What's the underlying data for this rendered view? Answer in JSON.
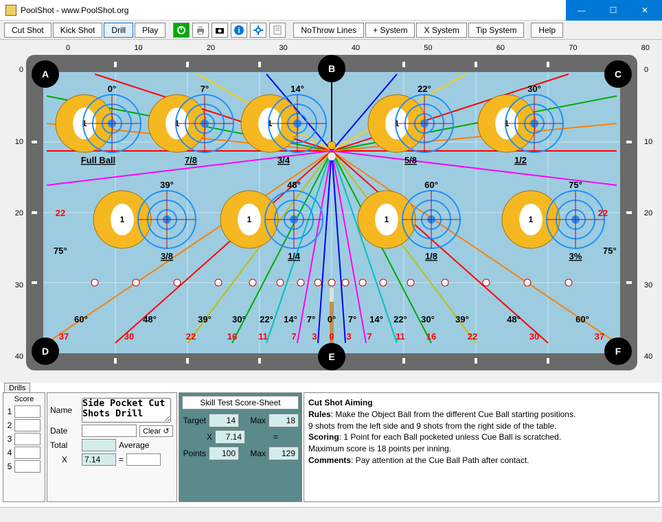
{
  "window": {
    "title": "PoolShot - www.PoolShot.org"
  },
  "toolbar": {
    "cut_shot": "Cut Shot",
    "kick_shot": "Kick Shot",
    "drill": "Drill",
    "play": "Play",
    "no_throw": "NoThrow Lines",
    "plus_system": "+ System",
    "x_system": "X System",
    "tip_system": "Tip System",
    "help": "Help"
  },
  "ruler": {
    "top": [
      "0",
      "10",
      "20",
      "30",
      "40",
      "50",
      "60",
      "70",
      "80"
    ],
    "side": [
      "0",
      "10",
      "20",
      "30",
      "40"
    ]
  },
  "pockets": [
    "A",
    "B",
    "C",
    "D",
    "E",
    "F"
  ],
  "top_row": [
    {
      "angle": "0°",
      "frac": "Full Ball"
    },
    {
      "angle": "7°",
      "frac": "7/8"
    },
    {
      "angle": "14°",
      "frac": "3/4"
    },
    {
      "angle": "22°",
      "frac": "5/8"
    },
    {
      "angle": "30°",
      "frac": "1/2"
    }
  ],
  "mid_row": [
    {
      "angle": "39°",
      "frac": "3/8"
    },
    {
      "angle": "48°",
      "frac": "1/4"
    },
    {
      "angle": "60°",
      "frac": "1/8"
    },
    {
      "angle": "75°",
      "frac": "3%"
    }
  ],
  "side_labels": {
    "left_red": "22",
    "left_deg": "75°",
    "right_red": "22",
    "right_deg": "75°"
  },
  "bottom_angles_left": [
    "60°",
    "48°",
    "39°",
    "30°",
    "22°",
    "14°",
    "7°",
    "0°"
  ],
  "bottom_angles_right": [
    "7°",
    "14°",
    "22°",
    "30°",
    "39°",
    "48°",
    "60°"
  ],
  "bottom_red_left": [
    "37",
    "30",
    "22",
    "16",
    "11",
    "7",
    "3",
    "0"
  ],
  "bottom_red_right": [
    "3",
    "7",
    "11",
    "16",
    "22",
    "30",
    "37"
  ],
  "drills_tab": "Drills",
  "score": {
    "header": "Score",
    "rows": [
      "1",
      "2",
      "3",
      "4",
      "5"
    ]
  },
  "form": {
    "name_label": "Name",
    "name_value": "Side Pocket Cut Shots Drill",
    "date_label": "Date",
    "date_value": "",
    "clear": "Clear",
    "total_label": "Total",
    "total_value": "",
    "average_label": "Average",
    "x_label": "X",
    "x_value": "7.14",
    "eq": "="
  },
  "skill": {
    "header": "Skill Test Score-Sheet",
    "target_label": "Target",
    "target_value": "14",
    "max1_label": "Max",
    "max1_value": "18",
    "x_label": "X",
    "x_value": "7.14",
    "eq": "=",
    "points_label": "Points",
    "points_value": "100",
    "max2_label": "Max",
    "max2_value": "129"
  },
  "desc": {
    "title": "Cut Shot Aiming",
    "rules_label": "Rules",
    "rules_text": ": Make the Object Ball from the different Cue Ball starting positions.",
    "line2": "9 shots from the left side and 9 shots from the right side of the table.",
    "scoring_label": "Scoring",
    "scoring_text": ": 1 Point for each Ball pocketed unless Cue Ball is scratched.",
    "line4": "Maximum score is 18 points per inning.",
    "comments_label": "Comments",
    "comments_text": ": Pay attention at the Cue Ball Path after contact."
  },
  "colors": {
    "felt": "#9dcce0",
    "rail": "#6a6a6a",
    "ball": "#f5b820",
    "ball_stripe": "#ffffff",
    "target_ring": "#1e90ff",
    "accent_lines": [
      "#ff0000",
      "#00a000",
      "#0000ff",
      "#ff00ff",
      "#ffa500",
      "#ffff00",
      "#00cccc",
      "#800080",
      "#000000"
    ]
  }
}
